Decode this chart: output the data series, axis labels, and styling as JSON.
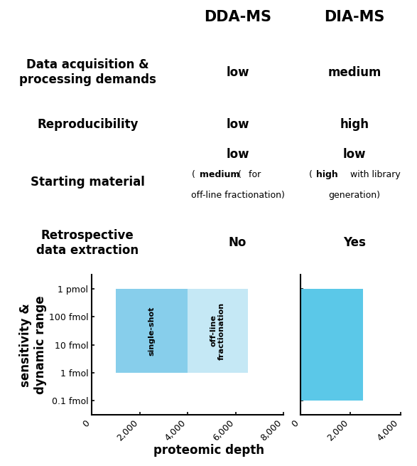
{
  "title_dda": "DDA-MS",
  "title_dia": "DIA-MS",
  "row_labels": [
    "Data acquisition &\nprocessing demands",
    "Reproducibility",
    "Starting material",
    "Retrospective\ndata extraction"
  ],
  "dda_values_plain": [
    "low",
    "low",
    "low",
    "No"
  ],
  "dia_values_plain": [
    "medium",
    "high",
    "low",
    "Yes"
  ],
  "bar_color_dda_single": "#87CEEB",
  "bar_color_dda_offline": "#C5E8F5",
  "bar_color_dia": "#5BC8E8",
  "ylabel_chart": "sensitivity &\ndynamic range",
  "xlabel_chart": "proteomic depth",
  "ytick_labels": [
    "0.1 fmol",
    "1 fmol",
    "10 fmol",
    "100 fmol",
    "1 pmol"
  ],
  "ytick_positions": [
    0,
    1,
    2,
    3,
    4
  ],
  "background_color": "#ffffff",
  "text_color": "#000000",
  "label_fontsize": 12,
  "value_fontsize": 12,
  "header_fontsize": 15,
  "chart_fontsize": 9,
  "sub_fontsize": 9
}
